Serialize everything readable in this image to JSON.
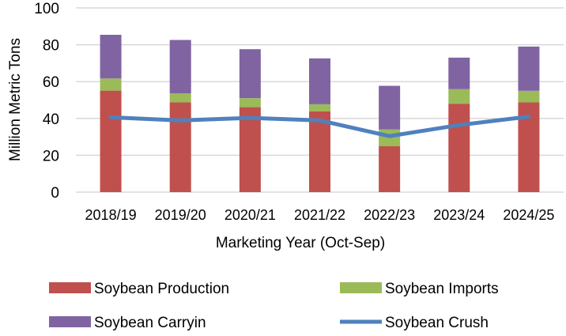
{
  "chart_data": {
    "type": "bar",
    "stacked": true,
    "title": "",
    "xlabel": "Marketing Year (Oct-Sep)",
    "ylabel": "Million Metric Tons",
    "ylim": [
      0,
      100
    ],
    "yticks": [
      0,
      20,
      40,
      60,
      80,
      100
    ],
    "grid": true,
    "legend_position": "bottom",
    "categories": [
      "2018/19",
      "2019/20",
      "2020/21",
      "2021/22",
      "2022/23",
      "2023/24",
      "2024/25"
    ],
    "series": [
      {
        "name": "Soybean Production",
        "kind": "bar",
        "color": "#C0504D",
        "values": [
          55.1,
          48.7,
          46.1,
          43.9,
          24.9,
          48.0,
          48.7
        ]
      },
      {
        "name": "Soybean Imports",
        "kind": "bar",
        "color": "#9BBB59",
        "values": [
          6.6,
          4.9,
          4.9,
          3.8,
          9.1,
          7.9,
          6.3
        ]
      },
      {
        "name": "Soybean Carryin",
        "kind": "bar",
        "color": "#8064A2",
        "values": [
          23.7,
          29.0,
          26.6,
          24.9,
          23.7,
          17.1,
          24.0
        ]
      },
      {
        "name": "Soybean Crush",
        "kind": "line",
        "color": "#4F81BD",
        "values": [
          40.6,
          38.9,
          40.3,
          38.9,
          30.4,
          36.4,
          41.0
        ]
      }
    ]
  }
}
